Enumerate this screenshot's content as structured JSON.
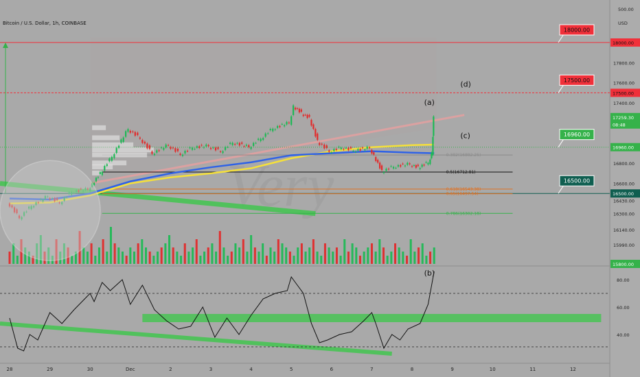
{
  "header": {
    "title": "Bitcoin / U.S. Dollar, 1h, COINBASE",
    "currency": "USD",
    "top_scale": "500.00"
  },
  "chart_data": {
    "type": "line",
    "title": "Bitcoin / U.S. Dollar, 1h, COINBASE",
    "xlabel": "",
    "ylabel": "",
    "ylim": [
      15800,
      18150
    ],
    "rsi_ylim": [
      20,
      88
    ],
    "x_ticks": [
      {
        "label": "28",
        "t": 0
      },
      {
        "label": "29",
        "t": 1
      },
      {
        "label": "30",
        "t": 2
      },
      {
        "label": "Dec",
        "t": 3
      },
      {
        "label": "2",
        "t": 4
      },
      {
        "label": "3",
        "t": 5
      },
      {
        "label": "4",
        "t": 6
      },
      {
        "label": "5",
        "t": 7
      },
      {
        "label": "6",
        "t": 8
      },
      {
        "label": "7",
        "t": 9
      },
      {
        "label": "8",
        "t": 10
      },
      {
        "label": "9",
        "t": 11
      },
      {
        "label": "10",
        "t": 12
      },
      {
        "label": "11",
        "t": 13
      },
      {
        "label": "12",
        "t": 14
      }
    ],
    "price_ticks": [
      "17800.00",
      "17600.00",
      "17400.00",
      "16800.00",
      "16600.00",
      "16430.00",
      "16300.00",
      "16140.00",
      "15990.00"
    ],
    "rsi_ticks": [
      "80.00",
      "60.00",
      "40.00"
    ],
    "price_series": {
      "name": "",
      "t": [
        0,
        0.3,
        0.6,
        1,
        1.3,
        1.6,
        2,
        2.1,
        2.3,
        2.6,
        3,
        3.3,
        3.6,
        4,
        4.3,
        4.6,
        5,
        5.3,
        5.6,
        6,
        6.3,
        6.6,
        7,
        7.1,
        7.3,
        7.5,
        7.7,
        8,
        8.3,
        8.6,
        9,
        9.1,
        9.3,
        9.6,
        10,
        10.2,
        10.45,
        10.52,
        10.55
      ],
      "y": [
        16420,
        16260,
        16380,
        16470,
        16410,
        16520,
        16540,
        16600,
        16700,
        16870,
        17140,
        17050,
        16900,
        16980,
        16890,
        16960,
        16970,
        16920,
        17010,
        16960,
        17050,
        17150,
        17200,
        17370,
        17300,
        17250,
        17020,
        16920,
        16960,
        16930,
        16950,
        16880,
        16720,
        16770,
        16790,
        16760,
        16810,
        16900,
        17260
      ]
    },
    "ma_blue": {
      "t": [
        0,
        1,
        2,
        3,
        4,
        5,
        6,
        7,
        8,
        9,
        10,
        10.55
      ],
      "y": [
        16450,
        16440,
        16500,
        16620,
        16700,
        16760,
        16810,
        16880,
        16900,
        16920,
        16905,
        16900
      ]
    },
    "ma_yellow": {
      "t": [
        0,
        1,
        2,
        3,
        4,
        5,
        6,
        7,
        8,
        9,
        10,
        10.55
      ],
      "y": [
        16400,
        16410,
        16480,
        16600,
        16660,
        16700,
        16750,
        16850,
        16920,
        16960,
        16980,
        16985
      ]
    },
    "levels": [
      {
        "name": "resistance-18000",
        "value": 18000,
        "label": "18000.00",
        "color": "#f0303a",
        "style": "solid"
      },
      {
        "name": "resistance-17500",
        "value": 17500,
        "label": "17500.00",
        "color": "#f0303a",
        "style": "dashed"
      },
      {
        "name": "level-16960",
        "value": 16960,
        "label": "16960.00",
        "color": "#35b24a",
        "style": "dotted"
      },
      {
        "name": "level-16500",
        "value": 16500,
        "label": "16500.00",
        "color": "#0f5e50",
        "style": "solid"
      }
    ],
    "fib_levels": [
      {
        "ratio": "0.382(16882.25)",
        "value": 16882,
        "color": "#8a8a8a"
      },
      {
        "ratio": "0.5(16712.81)",
        "value": 16713,
        "color": "#111111"
      },
      {
        "ratio": "0.618(16543.38)",
        "value": 16543,
        "color": "#e07020"
      },
      {
        "ratio": "0.65(16497.54)",
        "value": 16497,
        "color": "#e07020"
      },
      {
        "ratio": "0.786(16302.18)",
        "value": 16302,
        "color": "#35b24a"
      }
    ],
    "callouts": [
      {
        "label": "18000.00",
        "value": 18000,
        "color": "#f0303a"
      },
      {
        "label": "17500.00",
        "value": 17500,
        "color": "#f0303a"
      },
      {
        "label": "16960.00",
        "value": 16960,
        "color": "#35b24a"
      },
      {
        "label": "16500.00",
        "value": 16500,
        "color": "#0f5e50"
      }
    ],
    "axis_badges": [
      {
        "label": "18000.00",
        "value": 18000,
        "color": "#f0303a"
      },
      {
        "label": "17500.00",
        "value": 17500,
        "color": "#f0303a"
      },
      {
        "label": "17259.30",
        "value": 17259,
        "color": "#35b24a"
      },
      {
        "label": "08:48",
        "value": 17185,
        "color": "#35b24a"
      },
      {
        "label": "16960.00",
        "value": 16960,
        "color": "#35b24a"
      },
      {
        "label": "16500.00",
        "value": 16500,
        "color": "#0f5e50"
      },
      {
        "label": "15800.00",
        "value": 15800,
        "color": "#35b24a"
      }
    ],
    "wave_labels": [
      {
        "label": "(a)",
        "t": 10.3,
        "value": 17380
      },
      {
        "label": "(c)",
        "t": 11.2,
        "value": 17050
      },
      {
        "label": "(d)",
        "t": 11.2,
        "value": 17560
      },
      {
        "label": "(b)",
        "t": 10.3,
        "rsi": 83
      }
    ],
    "rsi_series": {
      "name": "",
      "t": [
        0,
        0.2,
        0.35,
        0.5,
        0.7,
        1,
        1.3,
        1.6,
        2,
        2.1,
        2.3,
        2.5,
        2.8,
        3,
        3.3,
        3.6,
        3.9,
        4.2,
        4.5,
        4.8,
        5.1,
        5.4,
        5.7,
        6,
        6.3,
        6.6,
        6.9,
        7,
        7.1,
        7.3,
        7.5,
        7.7,
        7.9,
        8.2,
        8.5,
        8.8,
        9,
        9.1,
        9.3,
        9.5,
        9.7,
        9.9,
        10.2,
        10.4,
        10.55
      ],
      "y": [
        52,
        30,
        28,
        40,
        36,
        56,
        48,
        58,
        70,
        64,
        78,
        72,
        80,
        62,
        76,
        58,
        50,
        44,
        46,
        60,
        38,
        52,
        40,
        54,
        66,
        70,
        72,
        82,
        78,
        70,
        48,
        34,
        36,
        40,
        42,
        50,
        56,
        48,
        30,
        40,
        36,
        44,
        48,
        62,
        86
      ]
    },
    "rsi_guides": [
      70,
      31
    ],
    "volume": {
      "t_start": 0,
      "t_end": 10.55,
      "values": [
        3,
        5,
        2,
        6,
        4,
        3,
        2,
        5,
        7,
        3,
        4,
        2,
        6,
        3,
        5,
        4,
        2,
        3,
        8,
        4,
        3,
        5,
        2,
        4,
        6,
        3,
        9,
        5,
        4,
        3,
        2,
        4,
        3,
        5,
        6,
        4,
        3,
        2,
        3,
        4,
        5,
        7,
        4,
        3,
        2,
        5,
        3,
        4,
        6,
        2,
        3,
        4,
        5,
        3,
        8,
        4,
        2,
        3,
        5,
        4,
        6,
        3,
        7,
        4,
        3,
        5,
        2,
        4,
        3,
        6,
        5,
        4,
        3,
        2,
        4,
        5,
        3,
        4,
        6,
        3,
        2,
        5,
        4,
        3,
        4,
        2,
        6,
        3,
        5,
        4,
        2,
        3,
        4,
        5,
        3,
        6,
        4,
        2,
        3,
        5,
        4,
        3,
        2,
        6,
        3,
        4,
        5,
        2,
        3,
        4
      ]
    }
  },
  "visuals": {
    "watermark": "Very",
    "colors": {
      "up": "#1db954",
      "down": "#e22a2a",
      "ma_blue": "#2f62e6",
      "ma_yellow": "#f5e03a",
      "trend_green": "#3cc84a",
      "pink": "#e8a0a0"
    }
  }
}
